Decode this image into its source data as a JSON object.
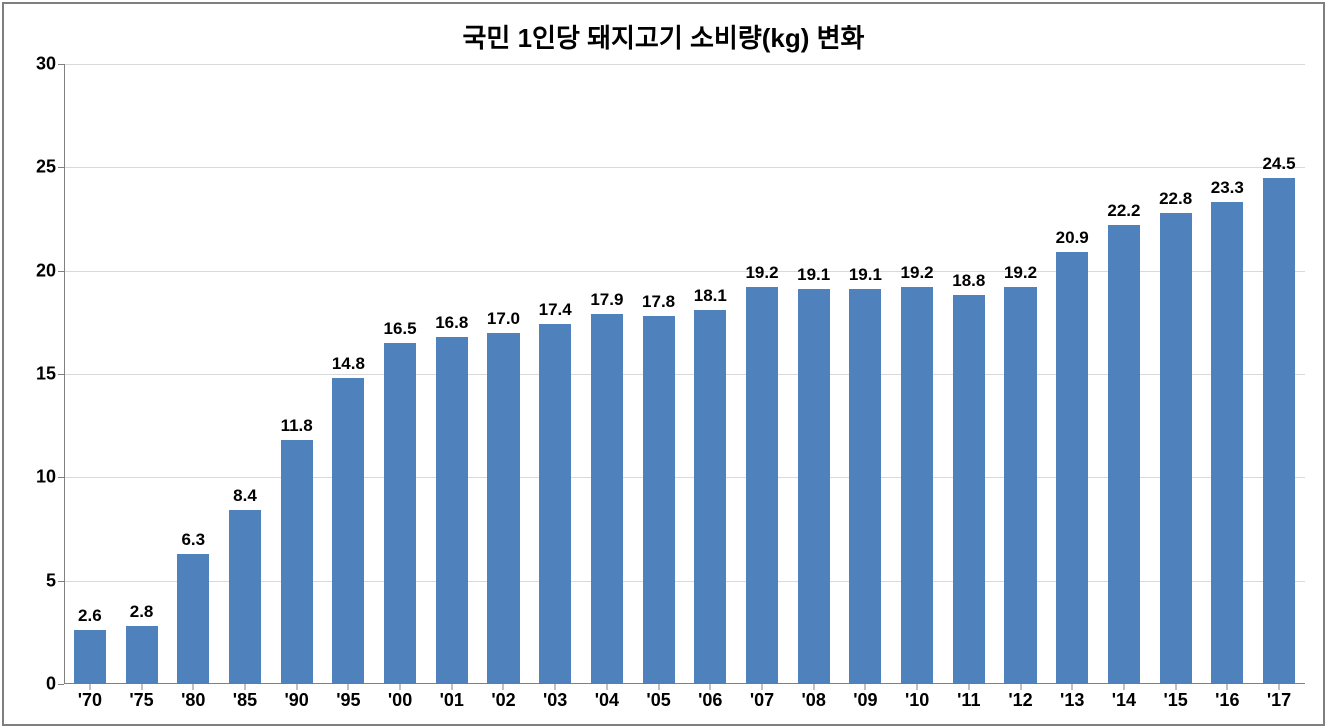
{
  "chart": {
    "type": "bar",
    "title": "국민 1인당 돼지고기 소비량(kg) 변화",
    "title_fontsize": 26,
    "title_color": "#000000",
    "title_weight": "bold",
    "categories": [
      "'70",
      "'75",
      "'80",
      "'85",
      "'90",
      "'95",
      "'00",
      "'01",
      "'02",
      "'03",
      "'04",
      "'05",
      "'06",
      "'07",
      "'08",
      "'09",
      "'10",
      "'11",
      "'12",
      "'13",
      "'14",
      "'15",
      "'16",
      "'17"
    ],
    "values": [
      2.6,
      2.8,
      6.3,
      8.4,
      11.8,
      14.8,
      16.5,
      16.8,
      17.0,
      17.4,
      17.9,
      17.8,
      18.1,
      19.2,
      19.1,
      19.1,
      19.2,
      18.8,
      19.2,
      20.9,
      22.2,
      22.8,
      23.3,
      24.5
    ],
    "value_labels": [
      "2.6",
      "2.8",
      "6.3",
      "8.4",
      "11.8",
      "14.8",
      "16.5",
      "16.8",
      "17.0",
      "17.4",
      "17.9",
      "17.8",
      "18.1",
      "19.2",
      "19.1",
      "19.1",
      "19.2",
      "18.8",
      "19.2",
      "20.9",
      "22.2",
      "22.8",
      "23.3",
      "24.5"
    ],
    "bar_color": "#4f81bd",
    "ylim": [
      0,
      30
    ],
    "ytick_step": 5,
    "ytick_labels": [
      "0",
      "5",
      "10",
      "15",
      "20",
      "25",
      "30"
    ],
    "grid_color": "#d9d9d9",
    "axis_color": "#808080",
    "background_color": "#ffffff",
    "border_color": "#7f7f7f",
    "axis_label_fontsize": 18,
    "axis_label_color": "#000000",
    "value_label_fontsize": 17,
    "value_label_color": "#000000",
    "bar_width": 0.62
  }
}
